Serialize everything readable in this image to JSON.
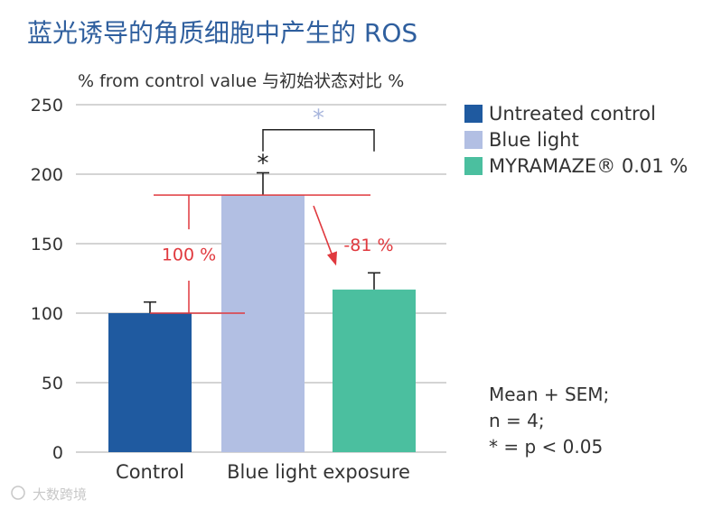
{
  "chart_data": {
    "type": "bar",
    "title": "蓝光诱导的角质细胞中产生的 ROS",
    "ylabel": "% from control value   与初始状态对比 %",
    "ylim": [
      0,
      250
    ],
    "yticks": [
      0,
      50,
      100,
      150,
      200,
      250
    ],
    "grid": true,
    "legend_position": "right",
    "categories": [
      "Control",
      "Blue light exposure"
    ],
    "bars": [
      {
        "name": "Untreated control",
        "category": "Control",
        "value": 100,
        "error": 8,
        "color": "#1f5aa0"
      },
      {
        "name": "Blue light",
        "category": "Blue light exposure",
        "value": 185,
        "error": 16,
        "color": "#b2bfe3"
      },
      {
        "name": "MYRAMAZE® 0.01 %",
        "category": "Blue light exposure",
        "value": 117,
        "error": 12,
        "color": "#4bbf9f"
      }
    ],
    "annotations": {
      "star_black": "*",
      "star_light": "*",
      "increase_label": "100 %",
      "decrease_label": "-81 %"
    },
    "note_lines": [
      "Mean + SEM;",
      "n = 4;",
      "* = p < 0.05"
    ],
    "watermark": "大数跨境",
    "colors": {
      "accent_red": "#e0393e",
      "light_star": "#a8b6dd",
      "grid": "#d4d4d4"
    }
  }
}
